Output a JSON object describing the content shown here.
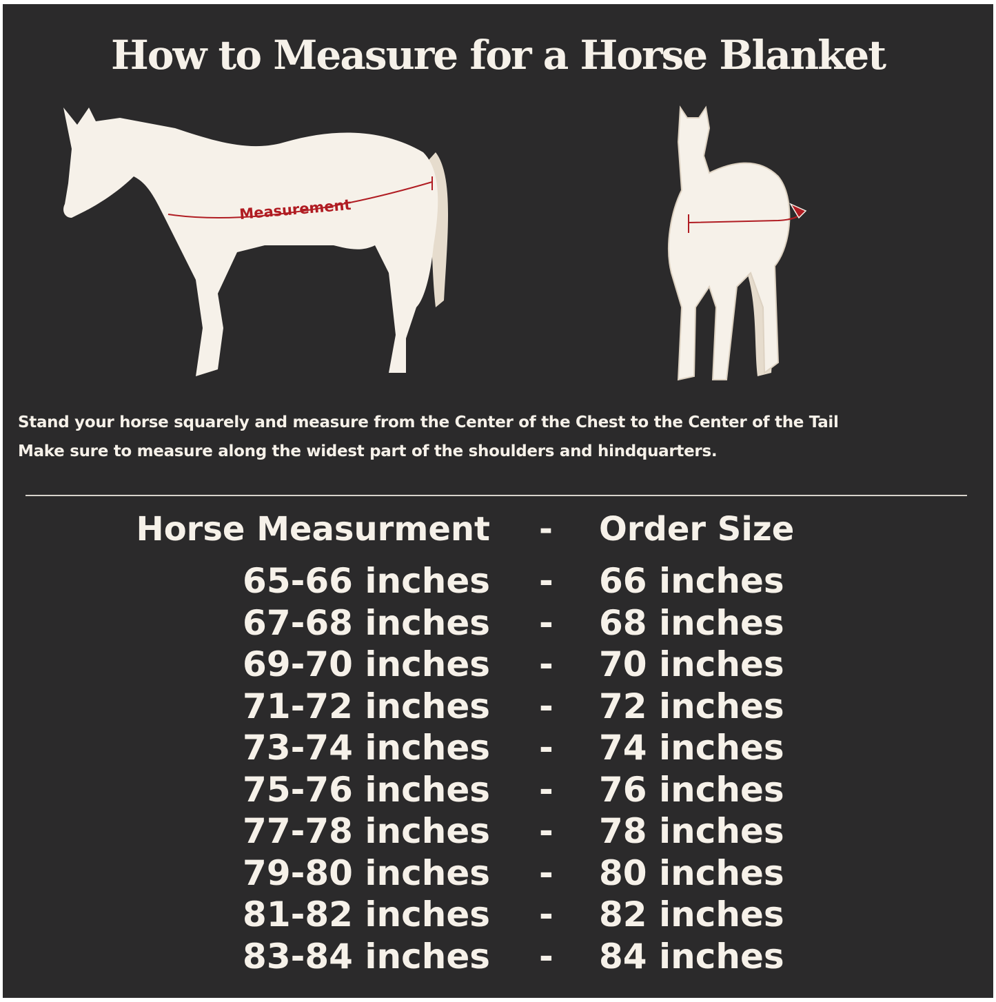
{
  "title": "How to Measure for a Horse Blanket",
  "illustration": {
    "measurement_label": "Measurement",
    "accent_color": "#b01c22"
  },
  "instructions": [
    "Stand your horse squarely and measure from the Center of the Chest to the Center of the Tail",
    "Make sure to measure along the widest part of the shoulders and hindquarters."
  ],
  "table": {
    "header": {
      "measurement": "Horse Measurment",
      "separator": "-",
      "size": "Order Size"
    },
    "rows": [
      {
        "measurement": "65-66 inches",
        "separator": "-",
        "size": "66 inches"
      },
      {
        "measurement": "67-68 inches",
        "separator": "-",
        "size": "68 inches"
      },
      {
        "measurement": "69-70 inches",
        "separator": "-",
        "size": "70 inches"
      },
      {
        "measurement": "71-72 inches",
        "separator": "-",
        "size": "72 inches"
      },
      {
        "measurement": "73-74 inches",
        "separator": "-",
        "size": "74 inches"
      },
      {
        "measurement": "75-76 inches",
        "separator": "-",
        "size": "76 inches"
      },
      {
        "measurement": "77-78 inches",
        "separator": "-",
        "size": "78 inches"
      },
      {
        "measurement": "79-80 inches",
        "separator": "-",
        "size": "80 inches"
      },
      {
        "measurement": "81-82 inches",
        "separator": "-",
        "size": "82 inches"
      },
      {
        "measurement": "83-84 inches",
        "separator": "-",
        "size": "84 inches"
      }
    ]
  }
}
